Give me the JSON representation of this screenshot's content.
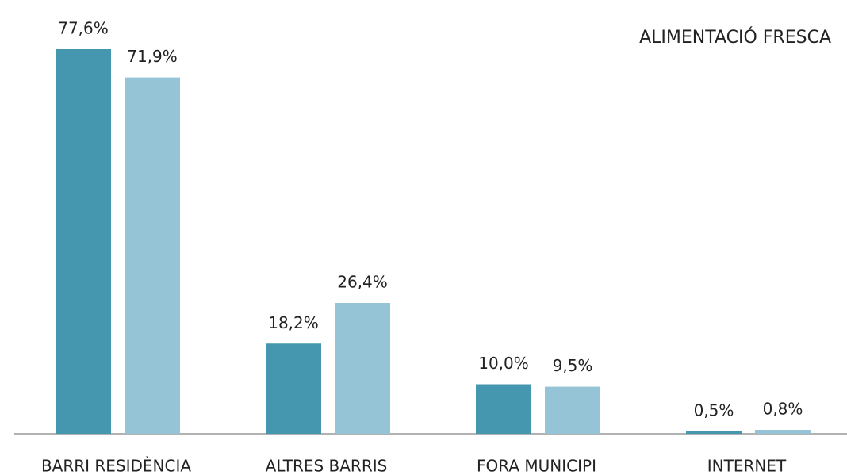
{
  "chart_data": {
    "type": "bar",
    "title": "ALIMENTACIÓ FRESCA",
    "categories": [
      "BARRI RESIDÈNCIA",
      "ALTRES BARRIS",
      "FORA MUNICIPI",
      "INTERNET"
    ],
    "series": [
      {
        "color": "#4497ae",
        "values": [
          77.6,
          18.2,
          10.0,
          0.5
        ],
        "value_labels": [
          "77,6%",
          "18,2%",
          "10,0%",
          "0,5%"
        ]
      },
      {
        "color": "#94c4d5",
        "values": [
          71.9,
          26.4,
          9.5,
          0.8
        ],
        "value_labels": [
          "71,9%",
          "26,4%",
          "9,5%",
          "0,8%"
        ]
      }
    ]
  }
}
